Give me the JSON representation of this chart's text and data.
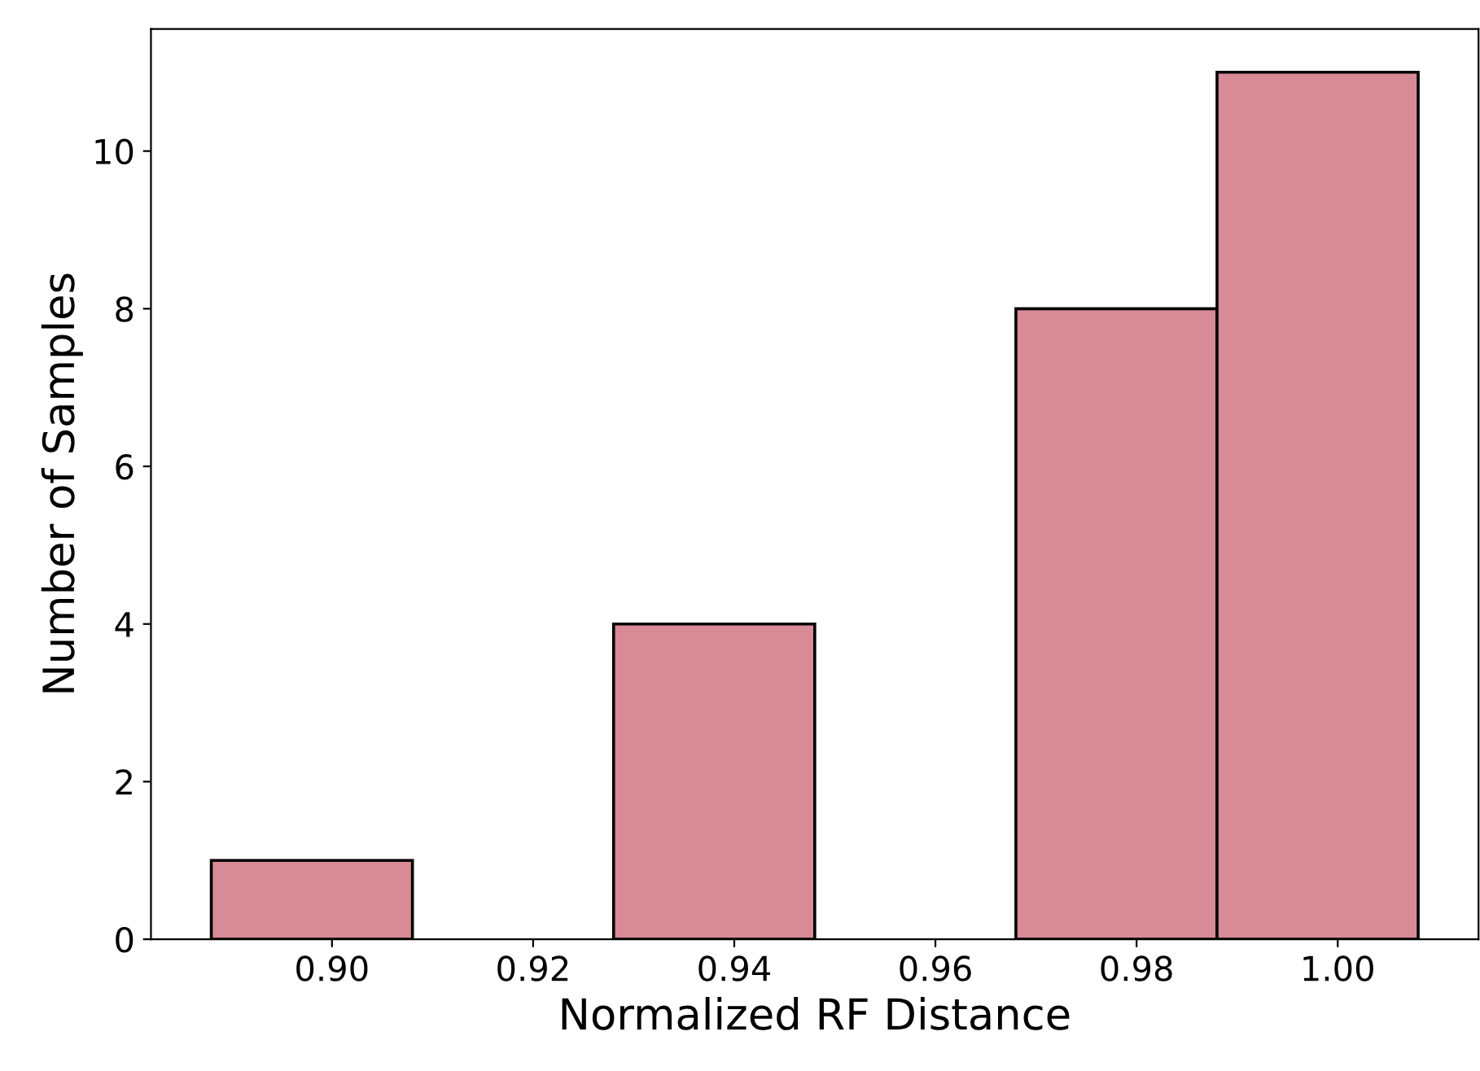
{
  "chart_data": {
    "type": "histogram",
    "xlabel": "Normalized RF Distance",
    "ylabel": "Number of Samples",
    "bins": [
      0.888,
      0.908,
      0.928,
      0.948,
      0.968,
      0.988,
      1.008
    ],
    "values": [
      1,
      0,
      4,
      0,
      8,
      11
    ],
    "color": "#d88b97",
    "xlim": [
      0.882,
      1.014
    ],
    "xticks": [
      {
        "value": 0.9,
        "label": "0.90"
      },
      {
        "value": 0.92,
        "label": "0.92"
      },
      {
        "value": 0.94,
        "label": "0.94"
      },
      {
        "value": 0.96,
        "label": "0.96"
      },
      {
        "value": 0.98,
        "label": "0.98"
      },
      {
        "value": 1.0,
        "label": "1.00"
      }
    ],
    "ylim": [
      0,
      11.55
    ],
    "yticks": [
      0,
      2,
      4,
      6,
      8,
      10
    ],
    "grid": false,
    "legend": false
  }
}
